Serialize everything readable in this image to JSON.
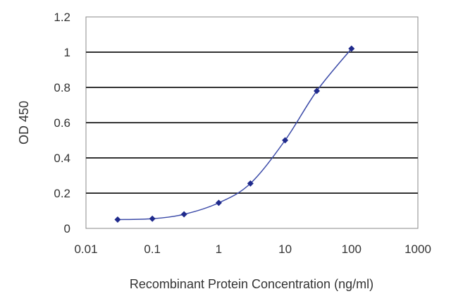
{
  "chart_data": {
    "type": "scatter",
    "title": "",
    "xlabel": "Recombinant Protein Concentration (ng/ml)",
    "ylabel": "OD 450",
    "x_scale": "log",
    "xlim": [
      0.01,
      1000
    ],
    "ylim": [
      0,
      1.2
    ],
    "x_ticks": [
      "0.01",
      "0.1",
      "1",
      "10",
      "100",
      "1000"
    ],
    "y_ticks": [
      "0",
      "0.2",
      "0.4",
      "0.6",
      "0.8",
      "1",
      "1.2"
    ],
    "grid": "horizontal",
    "legend": "none",
    "series": [
      {
        "x": [
          0.03,
          0.1,
          0.3,
          1,
          3,
          10,
          30,
          100
        ],
        "y": [
          0.05,
          0.055,
          0.08,
          0.145,
          0.255,
          0.5,
          0.78,
          1.02
        ],
        "color": "#1f2a8c",
        "line": "smooth"
      }
    ],
    "colors": {
      "grid": "#333333",
      "frame": "#888888",
      "line": "#3b4aa8",
      "marker": "#1f2a8c"
    }
  }
}
